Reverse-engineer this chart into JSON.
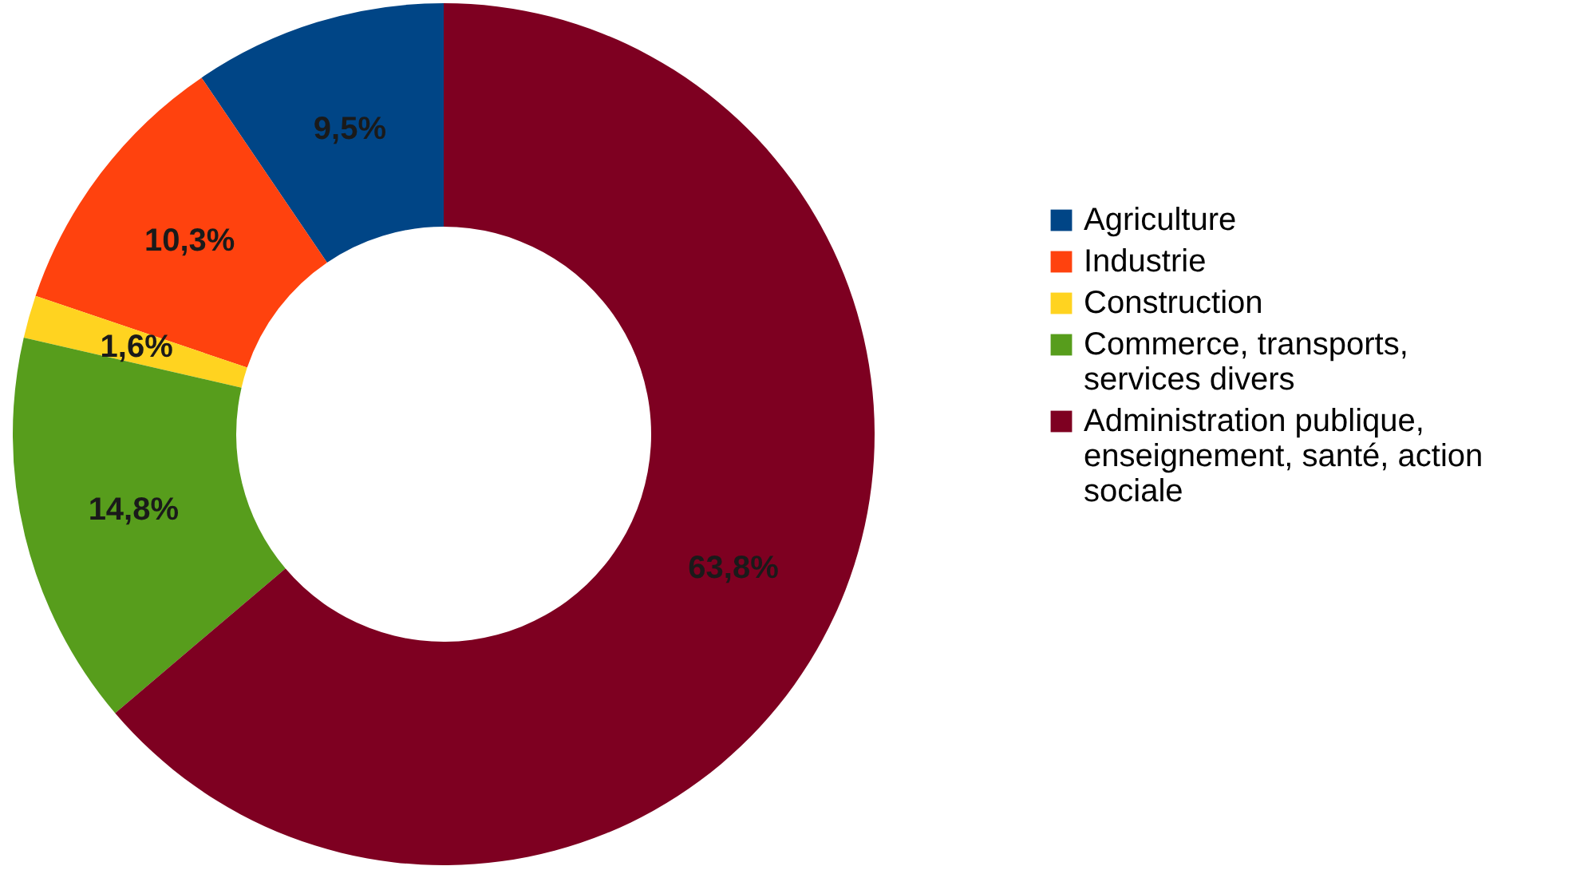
{
  "chart_data": {
    "type": "donut",
    "categories": [
      "Agriculture",
      "Industrie",
      "Construction",
      "Commerce, transports, services divers",
      "Administration publique, enseignement, santé, action sociale"
    ],
    "values": [
      9.5,
      10.3,
      1.6,
      14.8,
      63.8
    ],
    "colors": [
      "#004586",
      "#ff420e",
      "#ffd320",
      "#579d1c",
      "#7e0021"
    ],
    "value_labels": [
      "9,5%",
      "10,3%",
      "1,6%",
      "14,8%",
      "63,8%"
    ],
    "legend": "right"
  }
}
